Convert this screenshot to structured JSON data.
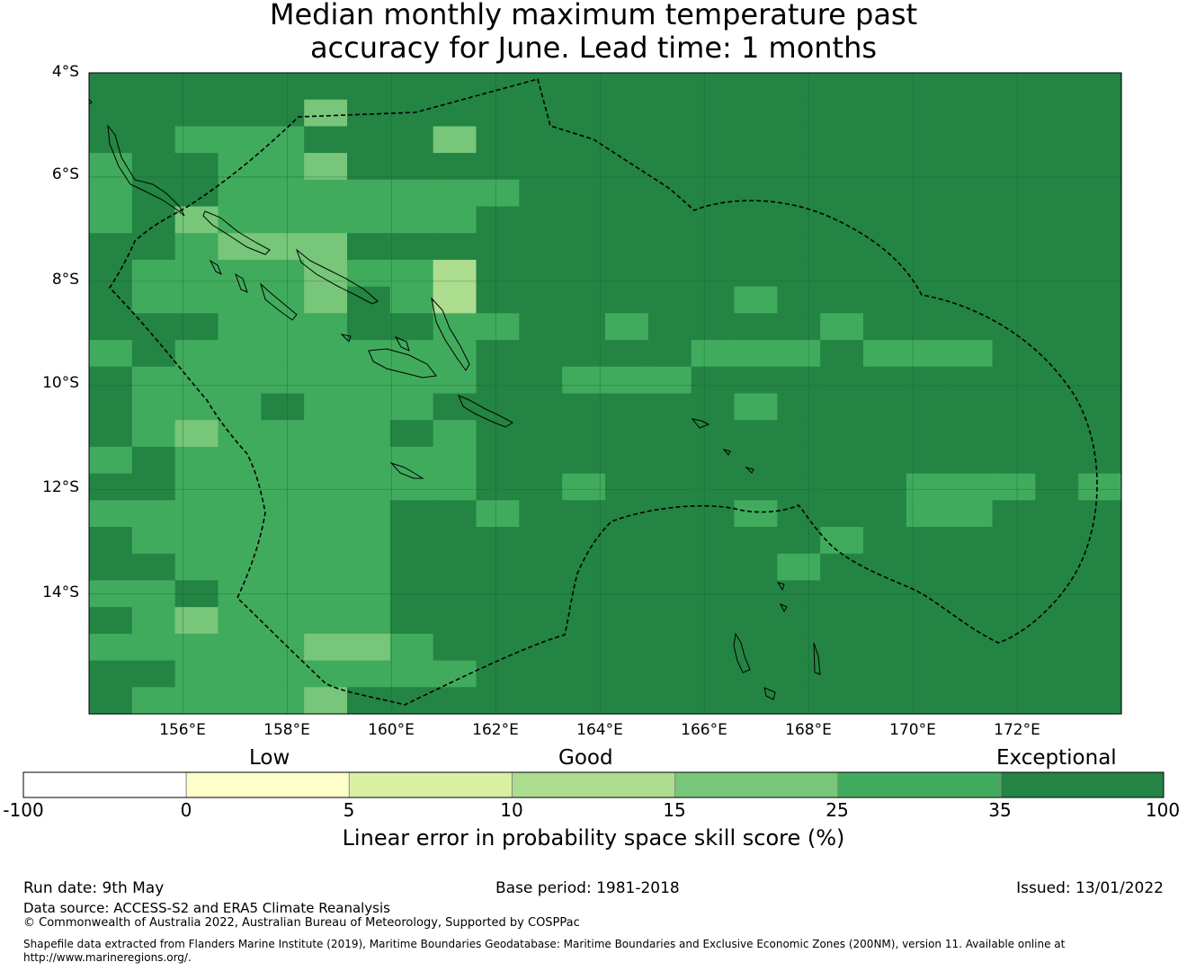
{
  "title_line1": "Median monthly maximum temperature past",
  "title_line2": "accuracy for June. Lead time: 1 months",
  "map": {
    "lat_labels": [
      "4°S",
      "6°S",
      "8°S",
      "10°S",
      "12°S",
      "14°S"
    ],
    "lon_labels": [
      "156°E",
      "158°E",
      "160°E",
      "162°E",
      "164°E",
      "166°E",
      "168°E",
      "170°E",
      "172°E"
    ],
    "extent": {
      "lon_min": 154.2,
      "lon_max": 174.0,
      "lat_min": -16.3,
      "lat_max": -4.0
    },
    "grid_resolution_deg": 0.833,
    "colors": {
      "c0": "#ffffcc",
      "c1": "#d9f0a3",
      "c2": "#addd8e",
      "c3": "#78c679",
      "c4": "#41ab5d",
      "c5": "#238443"
    },
    "skill_classes_grid_rows_north_to_south": [
      "555555555555555555555555",
      "555553555555555555555555",
      "554445553555555555555555",
      "455443555555555555555555",
      "455444444455555555555555",
      "453444444555555555555555",
      "554333555555555555555555",
      "544443442555555555555555",
      "544443542555555455555555",
      "555444554455455554555555",
      "454444444555554445444555",
      "544444444554445555555555",
      "544454445555555455555555",
      "543444454555555555555555",
      "454444444555555555555555",
      "554444444554555555544454",
      "444444455455555455544555",
      "544444455555555554555555",
      "554444455555555545555555",
      "445444455555555555555555",
      "543444455555555555555555",
      "444443345555555555555555",
      "554444444555555555555555",
      "544443555555555555555555"
    ]
  },
  "colorbar": {
    "categories": [
      "Low",
      "Good",
      "Exceptional"
    ],
    "ticks": [
      "-100",
      "0",
      "5",
      "10",
      "15",
      "25",
      "35",
      "100"
    ],
    "colors": [
      "#ffffff",
      "#ffffcc",
      "#d9f0a3",
      "#addd8e",
      "#78c679",
      "#41ab5d",
      "#238443"
    ],
    "title": "Linear error in probability space skill score (%)"
  },
  "footer": {
    "run_date": "Run date: 9th May",
    "base_period": "Base period: 1981-2018",
    "issued": "Issued: 13/01/2022",
    "data_source": "Data source: ACCESS-S2 and ERA5 Climate Reanalysis",
    "copyright": "© Commonwealth of Australia 2022, Australian Bureau of Meteorology, Supported by COSPPac",
    "shapefile_line1": "Shapefile data extracted from Flanders Marine Institute (2019), Maritime Boundaries Geodatabase: Maritime Boundaries and Exclusive Economic Zones (200NM), version 11. Available online at",
    "shapefile_line2": "http://www.marineregions.org/."
  }
}
